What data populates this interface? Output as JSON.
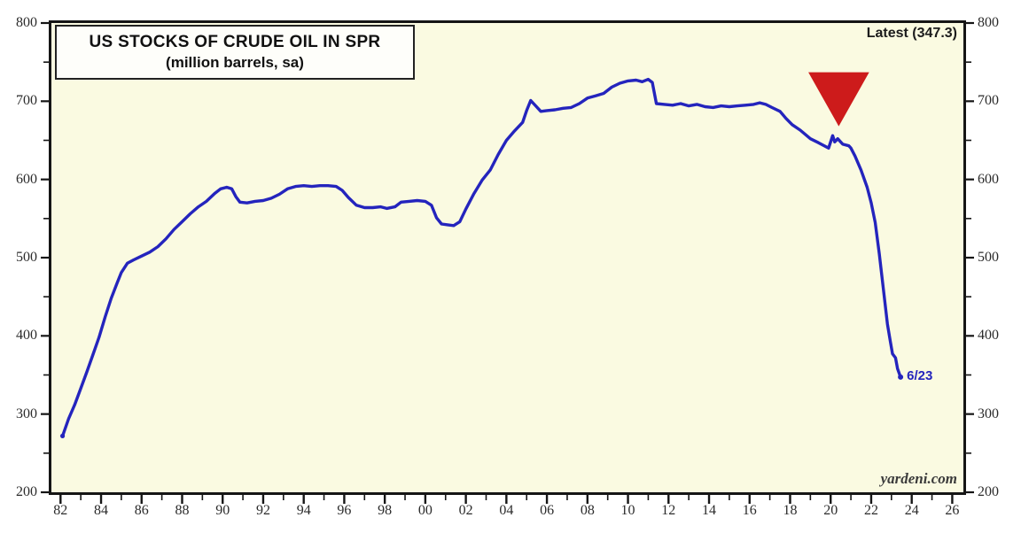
{
  "chart": {
    "title_line1": "US STOCKS OF CRUDE OIL IN SPR",
    "title_line2": "(million barrels, sa)",
    "latest_label": "Latest (347.3)",
    "end_label": "6/23",
    "watermark": "yardeni.com"
  },
  "colors": {
    "line": "#2424bd",
    "marker": "#cd1b1b",
    "plot_bg": "#fafae1",
    "axis": "#151515",
    "tick_text": "#2b2b2b"
  },
  "icons": {
    "peak_marker": "red-down-triangle-icon"
  },
  "chart_data": {
    "type": "line",
    "title": "US STOCKS OF CRUDE OIL IN SPR",
    "subtitle": "(million barrels, sa)",
    "xlabel": "",
    "ylabel": "million barrels",
    "grid": false,
    "legend_position": "none",
    "x_range": [
      1981.55,
      2026.55
    ],
    "ylim": [
      200,
      800
    ],
    "y_major_step": 100,
    "y_minor_step": 50,
    "y_tick_labels": [
      "200",
      "300",
      "400",
      "500",
      "600",
      "700",
      "800"
    ],
    "x_major_years": [
      1982,
      1984,
      1986,
      1988,
      1990,
      1992,
      1994,
      1996,
      1998,
      2000,
      2002,
      2004,
      2006,
      2008,
      2010,
      2012,
      2014,
      2016,
      2018,
      2020,
      2022,
      2024,
      2026
    ],
    "x_tick_labels": [
      "82",
      "84",
      "86",
      "88",
      "90",
      "92",
      "94",
      "96",
      "98",
      "00",
      "02",
      "04",
      "06",
      "08",
      "10",
      "12",
      "14",
      "16",
      "18",
      "20",
      "22",
      "24",
      "26"
    ],
    "x_minor_years": [
      1983,
      1985,
      1987,
      1989,
      1991,
      1993,
      1995,
      1997,
      1999,
      2001,
      2003,
      2005,
      2007,
      2009,
      2011,
      2013,
      2015,
      2017,
      2019,
      2021,
      2023,
      2025
    ],
    "latest_value": 347.3,
    "latest_date_label": "6/23",
    "marker": {
      "year": 2020.4,
      "top_value": 737,
      "apex_value": 668,
      "half_width_years": 1.5
    },
    "series": [
      {
        "name": "US stocks of crude oil in SPR (million barrels, sa)",
        "points": [
          [
            1982.1,
            272
          ],
          [
            1982.4,
            294
          ],
          [
            1982.7,
            312
          ],
          [
            1983.0,
            333
          ],
          [
            1983.3,
            354
          ],
          [
            1983.6,
            376
          ],
          [
            1983.9,
            398
          ],
          [
            1984.2,
            424
          ],
          [
            1984.5,
            448
          ],
          [
            1984.8,
            468
          ],
          [
            1985.0,
            481
          ],
          [
            1985.3,
            493
          ],
          [
            1985.6,
            497
          ],
          [
            1986.0,
            502
          ],
          [
            1986.4,
            507
          ],
          [
            1986.8,
            514
          ],
          [
            1987.2,
            524
          ],
          [
            1987.6,
            536
          ],
          [
            1988.0,
            546
          ],
          [
            1988.4,
            556
          ],
          [
            1988.8,
            565
          ],
          [
            1989.2,
            572
          ],
          [
            1989.6,
            582
          ],
          [
            1989.9,
            588
          ],
          [
            1990.2,
            590
          ],
          [
            1990.45,
            588
          ],
          [
            1990.65,
            578
          ],
          [
            1990.85,
            571
          ],
          [
            1991.2,
            570
          ],
          [
            1991.6,
            572
          ],
          [
            1992.0,
            573
          ],
          [
            1992.4,
            576
          ],
          [
            1992.8,
            581
          ],
          [
            1993.2,
            588
          ],
          [
            1993.6,
            591
          ],
          [
            1994.0,
            592
          ],
          [
            1994.4,
            591
          ],
          [
            1994.8,
            592
          ],
          [
            1995.2,
            592
          ],
          [
            1995.6,
            591
          ],
          [
            1995.9,
            586
          ],
          [
            1996.2,
            577
          ],
          [
            1996.6,
            567
          ],
          [
            1997.0,
            564
          ],
          [
            1997.4,
            564
          ],
          [
            1997.8,
            565
          ],
          [
            1998.1,
            563
          ],
          [
            1998.5,
            565
          ],
          [
            1998.8,
            571
          ],
          [
            1999.2,
            572
          ],
          [
            1999.6,
            573
          ],
          [
            2000.0,
            572
          ],
          [
            2000.3,
            567
          ],
          [
            2000.55,
            551
          ],
          [
            2000.8,
            543
          ],
          [
            2001.1,
            542
          ],
          [
            2001.4,
            541
          ],
          [
            2001.7,
            546
          ],
          [
            2002.0,
            562
          ],
          [
            2002.4,
            582
          ],
          [
            2002.8,
            599
          ],
          [
            2003.2,
            612
          ],
          [
            2003.6,
            632
          ],
          [
            2004.0,
            650
          ],
          [
            2004.4,
            662
          ],
          [
            2004.8,
            673
          ],
          [
            2005.0,
            688
          ],
          [
            2005.2,
            701
          ],
          [
            2005.45,
            694
          ],
          [
            2005.7,
            687
          ],
          [
            2006.0,
            688
          ],
          [
            2006.4,
            689
          ],
          [
            2006.8,
            691
          ],
          [
            2007.2,
            692
          ],
          [
            2007.6,
            697
          ],
          [
            2008.0,
            704
          ],
          [
            2008.4,
            707
          ],
          [
            2008.8,
            710
          ],
          [
            2009.2,
            718
          ],
          [
            2009.6,
            723
          ],
          [
            2010.0,
            726
          ],
          [
            2010.4,
            727
          ],
          [
            2010.7,
            725
          ],
          [
            2011.0,
            728
          ],
          [
            2011.2,
            724
          ],
          [
            2011.4,
            697
          ],
          [
            2011.8,
            696
          ],
          [
            2012.2,
            695
          ],
          [
            2012.6,
            697
          ],
          [
            2013.0,
            694
          ],
          [
            2013.4,
            696
          ],
          [
            2013.8,
            693
          ],
          [
            2014.2,
            692
          ],
          [
            2014.6,
            694
          ],
          [
            2015.0,
            693
          ],
          [
            2015.4,
            694
          ],
          [
            2015.8,
            695
          ],
          [
            2016.2,
            696
          ],
          [
            2016.5,
            698
          ],
          [
            2016.8,
            696
          ],
          [
            2017.1,
            692
          ],
          [
            2017.5,
            687
          ],
          [
            2017.8,
            678
          ],
          [
            2018.1,
            670
          ],
          [
            2018.5,
            663
          ],
          [
            2019.0,
            652
          ],
          [
            2019.4,
            647
          ],
          [
            2019.9,
            640
          ],
          [
            2020.1,
            656
          ],
          [
            2020.2,
            648
          ],
          [
            2020.35,
            652
          ],
          [
            2020.6,
            645
          ],
          [
            2020.9,
            643
          ],
          [
            2021.0,
            640
          ],
          [
            2021.2,
            630
          ],
          [
            2021.5,
            612
          ],
          [
            2021.8,
            590
          ],
          [
            2022.0,
            570
          ],
          [
            2022.2,
            545
          ],
          [
            2022.4,
            505
          ],
          [
            2022.6,
            460
          ],
          [
            2022.8,
            415
          ],
          [
            2022.95,
            392
          ],
          [
            2023.05,
            377
          ],
          [
            2023.2,
            372
          ],
          [
            2023.3,
            358
          ],
          [
            2023.45,
            347.3
          ]
        ]
      }
    ]
  }
}
